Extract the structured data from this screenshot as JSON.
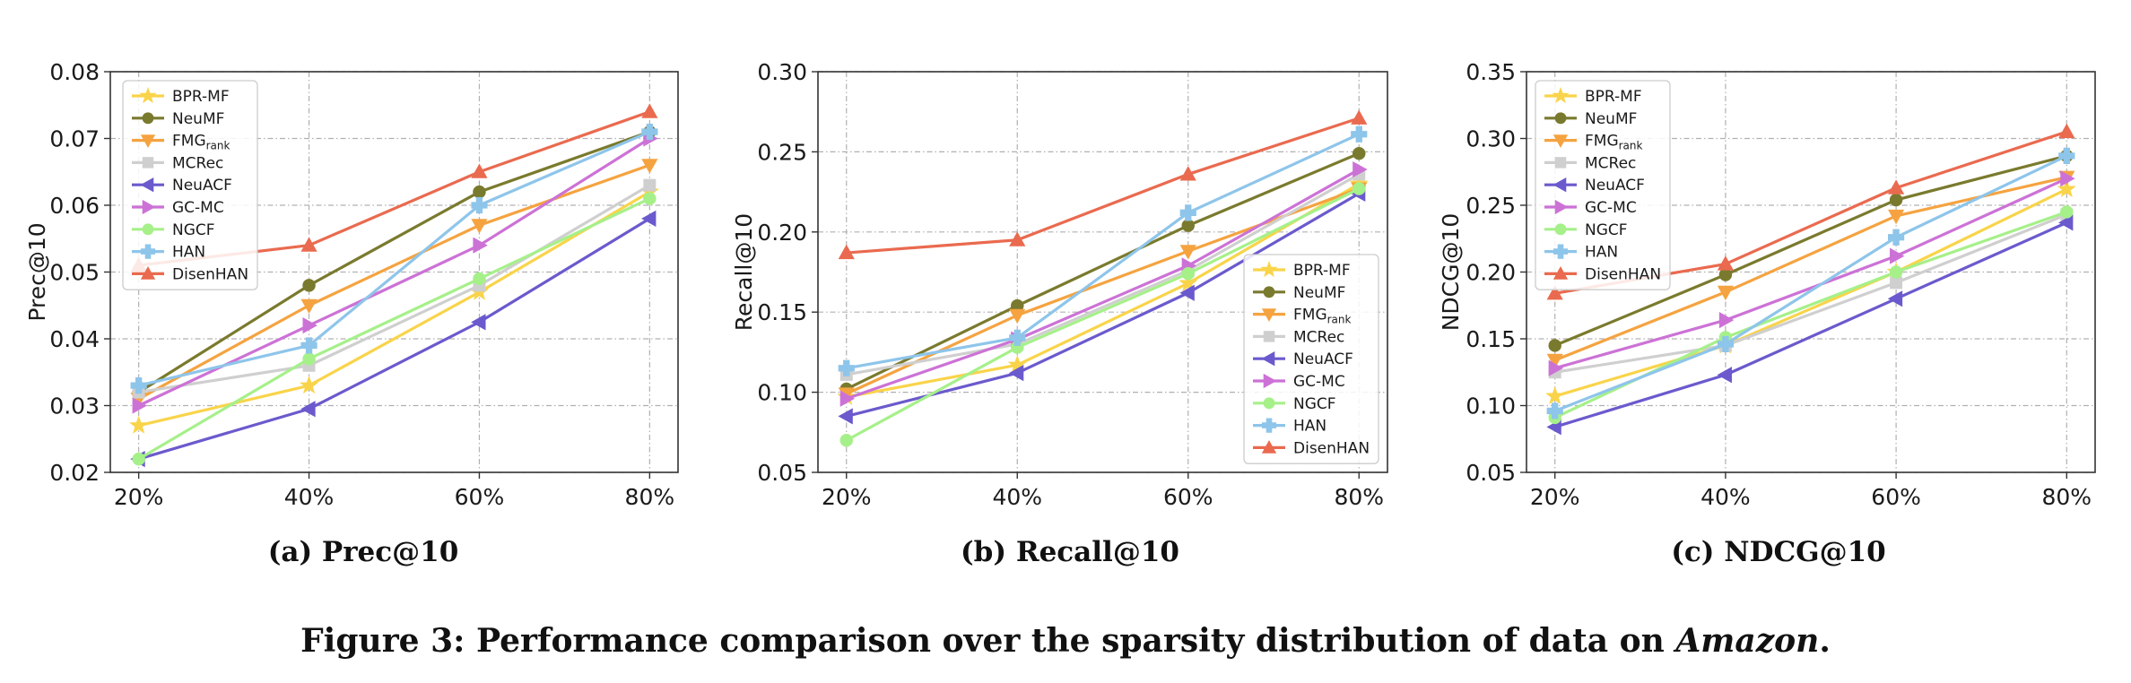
{
  "figure_caption": {
    "prefix": "Figure 3: Performance comparison over the sparsity distribution of data on ",
    "emph": "Amazon",
    "suffix": "."
  },
  "legend_entries": [
    {
      "name": "BPR-MF",
      "base": "BPR-MF",
      "sub": "",
      "color": "#f9d44a",
      "marker": "star"
    },
    {
      "name": "NeuMF",
      "base": "NeuMF",
      "sub": "",
      "color": "#7a7a2e",
      "marker": "circle"
    },
    {
      "name": "FMGrank",
      "base": "FMG",
      "sub": "rank",
      "color": "#f5a340",
      "marker": "tri-down"
    },
    {
      "name": "MCRec",
      "base": "MCRec",
      "sub": "",
      "color": "#cfcfcf",
      "marker": "square"
    },
    {
      "name": "NeuACF",
      "base": "NeuACF",
      "sub": "",
      "color": "#6a5acd",
      "marker": "tri-left"
    },
    {
      "name": "GC-MC",
      "base": "GC-MC",
      "sub": "",
      "color": "#cc72d6",
      "marker": "tri-right"
    },
    {
      "name": "NGCF",
      "base": "NGCF",
      "sub": "",
      "color": "#a6f08a",
      "marker": "circle"
    },
    {
      "name": "HAN",
      "base": "HAN",
      "sub": "",
      "color": "#8ec5ea",
      "marker": "plus"
    },
    {
      "name": "DisenHAN",
      "base": "DisenHAN",
      "sub": "",
      "color": "#ea6a4f",
      "marker": "tri-up"
    }
  ],
  "chart_data": [
    {
      "type": "line",
      "caption": "(a) Prec@10",
      "ylabel": "Prec@10",
      "xlabel": "",
      "categories": [
        "20%",
        "40%",
        "60%",
        "80%"
      ],
      "ylim": [
        0.02,
        0.08
      ],
      "yticks": [
        "0.02",
        "0.03",
        "0.04",
        "0.05",
        "0.06",
        "0.07",
        "0.08"
      ],
      "legend_position": "upper-left",
      "grid": true,
      "series": [
        {
          "name": "BPR-MF",
          "values": [
            0.027,
            0.033,
            0.047,
            0.062
          ]
        },
        {
          "name": "NeuMF",
          "values": [
            0.032,
            0.048,
            0.062,
            0.071
          ]
        },
        {
          "name": "FMGrank",
          "values": [
            0.031,
            0.045,
            0.057,
            0.066
          ]
        },
        {
          "name": "MCRec",
          "values": [
            0.032,
            0.036,
            0.048,
            0.063
          ]
        },
        {
          "name": "NeuACF",
          "values": [
            0.022,
            0.0295,
            0.0425,
            0.058
          ]
        },
        {
          "name": "GC-MC",
          "values": [
            0.03,
            0.042,
            0.054,
            0.07
          ]
        },
        {
          "name": "NGCF",
          "values": [
            0.022,
            0.037,
            0.049,
            0.061
          ]
        },
        {
          "name": "HAN",
          "values": [
            0.033,
            0.039,
            0.06,
            0.071
          ]
        },
        {
          "name": "DisenHAN",
          "values": [
            0.051,
            0.054,
            0.065,
            0.074
          ]
        }
      ]
    },
    {
      "type": "line",
      "caption": "(b) Recall@10",
      "ylabel": "Recall@10",
      "xlabel": "",
      "categories": [
        "20%",
        "40%",
        "60%",
        "80%"
      ],
      "ylim": [
        0.05,
        0.3
      ],
      "yticks": [
        "0.05",
        "0.10",
        "0.15",
        "0.20",
        "0.25",
        "0.30"
      ],
      "legend_position": "lower-right",
      "grid": true,
      "series": [
        {
          "name": "BPR-MF",
          "values": [
            0.097,
            0.117,
            0.168,
            0.23
          ]
        },
        {
          "name": "NeuMF",
          "values": [
            0.102,
            0.154,
            0.204,
            0.249
          ]
        },
        {
          "name": "FMGrank",
          "values": [
            0.099,
            0.148,
            0.188,
            0.227
          ]
        },
        {
          "name": "MCRec",
          "values": [
            0.111,
            0.13,
            0.176,
            0.236
          ]
        },
        {
          "name": "NeuACF",
          "values": [
            0.085,
            0.112,
            0.162,
            0.224
          ]
        },
        {
          "name": "GC-MC",
          "values": [
            0.096,
            0.133,
            0.179,
            0.239
          ]
        },
        {
          "name": "NGCF",
          "values": [
            0.07,
            0.128,
            0.174,
            0.227
          ]
        },
        {
          "name": "HAN",
          "values": [
            0.115,
            0.134,
            0.212,
            0.261
          ]
        },
        {
          "name": "DisenHAN",
          "values": [
            0.187,
            0.195,
            0.236,
            0.271
          ]
        }
      ]
    },
    {
      "type": "line",
      "caption": "(c) NDCG@10",
      "ylabel": "NDCG@10",
      "xlabel": "",
      "categories": [
        "20%",
        "40%",
        "60%",
        "80%"
      ],
      "ylim": [
        0.05,
        0.35
      ],
      "yticks": [
        "0.05",
        "0.10",
        "0.15",
        "0.20",
        "0.25",
        "0.30",
        "0.35"
      ],
      "legend_position": "upper-left",
      "grid": true,
      "series": [
        {
          "name": "BPR-MF",
          "values": [
            0.107,
            0.145,
            0.2,
            0.262
          ]
        },
        {
          "name": "NeuMF",
          "values": [
            0.145,
            0.198,
            0.254,
            0.287
          ]
        },
        {
          "name": "FMGrank",
          "values": [
            0.134,
            0.185,
            0.242,
            0.271
          ]
        },
        {
          "name": "MCRec",
          "values": [
            0.125,
            0.145,
            0.192,
            0.243
          ]
        },
        {
          "name": "NeuACF",
          "values": [
            0.084,
            0.123,
            0.18,
            0.237
          ]
        },
        {
          "name": "GC-MC",
          "values": [
            0.128,
            0.164,
            0.212,
            0.27
          ]
        },
        {
          "name": "NGCF",
          "values": [
            0.091,
            0.151,
            0.2,
            0.245
          ]
        },
        {
          "name": "HAN",
          "values": [
            0.096,
            0.146,
            0.226,
            0.287
          ]
        },
        {
          "name": "DisenHAN",
          "values": [
            0.184,
            0.206,
            0.263,
            0.305
          ]
        }
      ]
    }
  ]
}
